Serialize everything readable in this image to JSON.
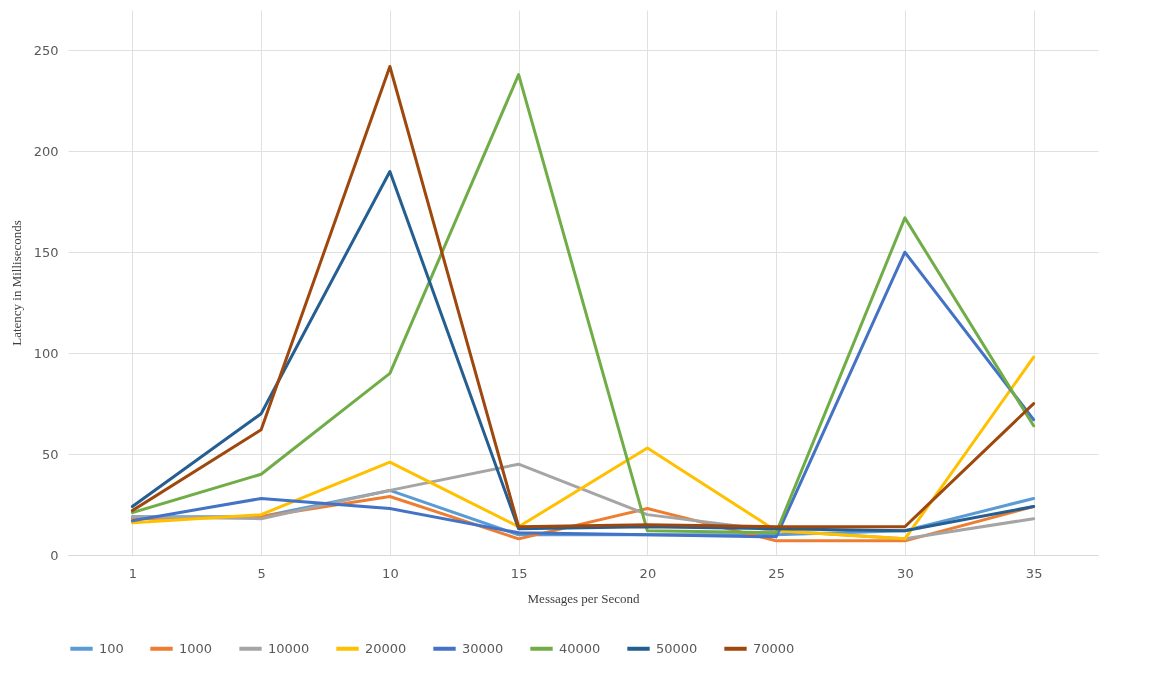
{
  "chart_data": {
    "type": "line",
    "xlabel": "Messages per Second",
    "ylabel": "Latency in Milliseconds",
    "categories": [
      "1",
      "5",
      "10",
      "15",
      "20",
      "25",
      "30",
      "35"
    ],
    "series": [
      {
        "name": "100",
        "color": "#5b9bd5",
        "values": [
          19,
          19,
          32,
          10,
          10,
          10,
          12,
          28
        ]
      },
      {
        "name": "1000",
        "color": "#ed7d31",
        "values": [
          18,
          19,
          29,
          8,
          23,
          7,
          7,
          24
        ]
      },
      {
        "name": "10000",
        "color": "#a5a5a5",
        "values": [
          19,
          18,
          32,
          45,
          20,
          12,
          8,
          18
        ]
      },
      {
        "name": "20000",
        "color": "#ffc000",
        "values": [
          16,
          20,
          46,
          14,
          53,
          12,
          8,
          98
        ]
      },
      {
        "name": "30000",
        "color": "#4472c4",
        "values": [
          17,
          28,
          23,
          11,
          10,
          9,
          150,
          67
        ]
      },
      {
        "name": "40000",
        "color": "#70ad47",
        "values": [
          21,
          40,
          90,
          238,
          12,
          11,
          167,
          64
        ]
      },
      {
        "name": "50000",
        "color": "#255e91",
        "values": [
          24,
          70,
          190,
          13,
          14,
          13,
          12,
          24
        ]
      },
      {
        "name": "70000",
        "color": "#9e480e",
        "values": [
          22,
          62,
          242,
          14,
          15,
          14,
          14,
          75
        ]
      }
    ],
    "ylim": [
      0,
      270
    ],
    "yticks": [
      0,
      50,
      100,
      150,
      200,
      250
    ],
    "grid": true,
    "legend": "bottom",
    "marker": "none",
    "line_style": "solid"
  }
}
